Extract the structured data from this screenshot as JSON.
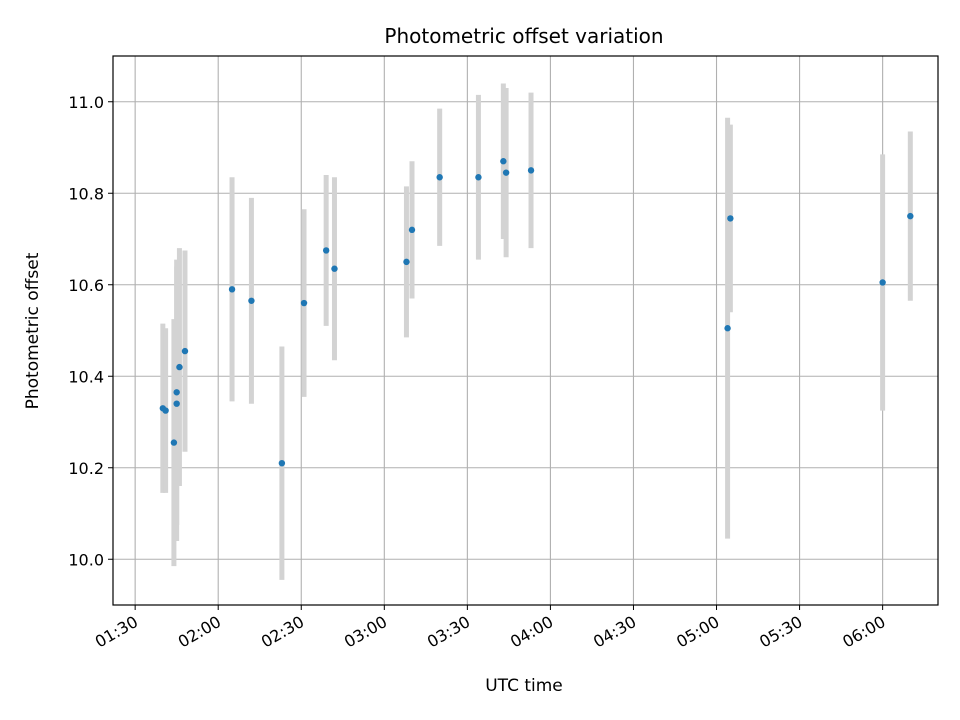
{
  "chart_data": {
    "type": "scatter",
    "title": "Photometric offset variation",
    "xlabel": "UTC time",
    "ylabel": "Photometric offset",
    "x_axis_type": "time",
    "xlim": [
      "01:22",
      "06:20"
    ],
    "ylim": [
      9.9,
      11.1
    ],
    "x_ticks": [
      "01:30",
      "02:00",
      "02:30",
      "03:00",
      "03:30",
      "04:00",
      "04:30",
      "05:00",
      "05:30",
      "06:00"
    ],
    "y_ticks": [
      "10.0",
      "10.2",
      "10.4",
      "10.6",
      "10.8",
      "11.0"
    ],
    "grid": true,
    "legend": false,
    "marker_color": "#1f77b4",
    "errorbar_color": "#d3d3d3",
    "series": [
      {
        "points": [
          {
            "x": "01:40",
            "y": 10.33,
            "err": 0.185
          },
          {
            "x": "01:41",
            "y": 10.325,
            "err": 0.18
          },
          {
            "x": "01:44",
            "y": 10.255,
            "err": 0.27
          },
          {
            "x": "01:45",
            "y": 10.34,
            "err": 0.3
          },
          {
            "x": "01:45",
            "y": 10.365,
            "err": 0.29
          },
          {
            "x": "01:46",
            "y": 10.42,
            "err": 0.26
          },
          {
            "x": "01:48",
            "y": 10.455,
            "err": 0.22
          },
          {
            "x": "02:05",
            "y": 10.59,
            "err": 0.245
          },
          {
            "x": "02:12",
            "y": 10.565,
            "err": 0.225
          },
          {
            "x": "02:23",
            "y": 10.21,
            "err": 0.255
          },
          {
            "x": "02:31",
            "y": 10.56,
            "err": 0.205
          },
          {
            "x": "02:39",
            "y": 10.675,
            "err": 0.165
          },
          {
            "x": "02:42",
            "y": 10.635,
            "err": 0.2
          },
          {
            "x": "03:08",
            "y": 10.65,
            "err": 0.165
          },
          {
            "x": "03:10",
            "y": 10.72,
            "err": 0.15
          },
          {
            "x": "03:20",
            "y": 10.835,
            "err": 0.15
          },
          {
            "x": "03:34",
            "y": 10.835,
            "err": 0.18
          },
          {
            "x": "03:43",
            "y": 10.87,
            "err": 0.17
          },
          {
            "x": "03:44",
            "y": 10.845,
            "err": 0.185
          },
          {
            "x": "03:53",
            "y": 10.85,
            "err": 0.17
          },
          {
            "x": "05:04",
            "y": 10.505,
            "err": 0.46
          },
          {
            "x": "05:05",
            "y": 10.745,
            "err": 0.205
          },
          {
            "x": "06:00",
            "y": 10.605,
            "err": 0.28
          },
          {
            "x": "06:10",
            "y": 10.75,
            "err": 0.185
          }
        ]
      }
    ]
  }
}
